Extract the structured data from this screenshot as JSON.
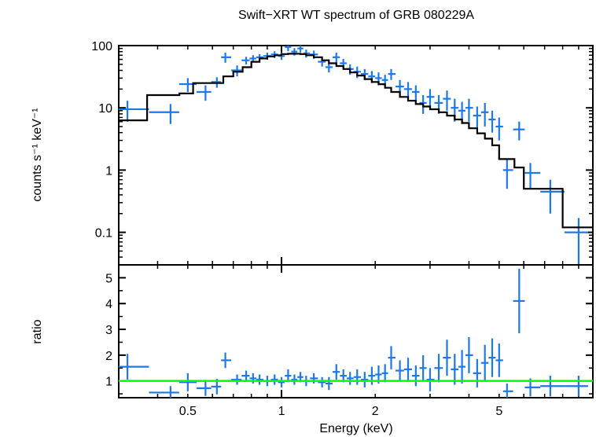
{
  "chart_data": {
    "type": "scatter",
    "title": "Swift−XRT WT spectrum of GRB 080229A",
    "xlabel": "Energy (keV)",
    "x_scale": "log",
    "xlim": [
      0.3,
      10
    ],
    "x_ticks": [
      0.5,
      1,
      2,
      5
    ],
    "x_tick_labels": [
      "0.5",
      "1",
      "2",
      "5"
    ],
    "colors": {
      "data": "#1e78e6",
      "model": "#000000",
      "unity": "#00ff00"
    },
    "panels": [
      {
        "name": "spectrum",
        "ylabel": "counts s⁻¹ keV⁻¹",
        "y_scale": "log",
        "ylim": [
          0.03,
          100
        ],
        "y_ticks": [
          0.1,
          1,
          10,
          100
        ],
        "y_tick_labels": [
          "0.1",
          "1",
          "10",
          "100"
        ],
        "series": [
          {
            "type": "errorbar",
            "x": [
              0.32,
              0.44,
              0.5,
              0.57,
              0.62,
              0.66,
              0.72,
              0.77,
              0.81,
              0.85,
              0.9,
              0.95,
              1.0,
              1.05,
              1.1,
              1.15,
              1.2,
              1.27,
              1.35,
              1.42,
              1.5,
              1.58,
              1.66,
              1.75,
              1.85,
              1.95,
              2.05,
              2.15,
              2.25,
              2.4,
              2.55,
              2.7,
              2.85,
              3.0,
              3.2,
              3.4,
              3.6,
              3.8,
              4.0,
              4.25,
              4.5,
              4.75,
              5.0,
              5.3,
              5.8,
              6.3,
              7.3,
              9.0
            ],
            "y": [
              9.5,
              8.5,
              24,
              18,
              26,
              65,
              40,
              58,
              62,
              65,
              68,
              72,
              68,
              95,
              80,
              90,
              75,
              72,
              55,
              45,
              65,
              52,
              42,
              38,
              35,
              32,
              30,
              28,
              35,
              22,
              20,
              18,
              12,
              15,
              12,
              14,
              10,
              9,
              10,
              7.5,
              8.5,
              6.5,
              5,
              1.0,
              4.5,
              0.9,
              0.45,
              0.1
            ],
            "yerr": [
              3.5,
              3.0,
              6,
              5,
              5,
              12,
              8,
              8,
              8,
              8,
              9,
              9,
              9,
              14,
              11,
              12,
              11,
              11,
              9,
              8,
              12,
              9,
              8,
              8,
              7,
              7,
              7,
              6,
              7,
              6,
              6,
              5,
              4,
              5,
              4,
              5,
              4,
              3.5,
              4,
              3,
              3.5,
              2.5,
              2,
              0.5,
              1.5,
              0.4,
              0.25,
              0.07
            ]
          },
          {
            "type": "step",
            "name": "model",
            "x_edges": [
              0.3,
              0.37,
              0.47,
              0.52,
              0.6,
              0.65,
              0.7,
              0.75,
              0.8,
              0.85,
              0.9,
              0.95,
              1.0,
              1.05,
              1.1,
              1.15,
              1.2,
              1.27,
              1.35,
              1.42,
              1.5,
              1.58,
              1.66,
              1.75,
              1.85,
              1.95,
              2.05,
              2.15,
              2.25,
              2.4,
              2.55,
              2.7,
              2.85,
              3.0,
              3.2,
              3.4,
              3.6,
              3.8,
              4.0,
              4.25,
              4.5,
              4.75,
              5.0,
              5.6,
              6.0,
              6.7,
              8.0,
              10.0
            ],
            "y": [
              6.3,
              16,
              17,
              25,
              25,
              32,
              38,
              45,
              55,
              62,
              67,
              70,
              73,
              74,
              74,
              73,
              70,
              65,
              58,
              52,
              47,
              42,
              37,
              33,
              29,
              26,
              24,
              21,
              18,
              15,
              13,
              11.5,
              10.5,
              9.5,
              8.5,
              7.5,
              6.5,
              5.7,
              4.7,
              3.9,
              3.2,
              2.5,
              1.5,
              1.1,
              0.5,
              0.5,
              0.12
            ]
          }
        ]
      },
      {
        "name": "ratio",
        "ylabel": "ratio",
        "y_scale": "linear",
        "ylim": [
          0.35,
          5.5
        ],
        "y_ticks": [
          1,
          2,
          3,
          4,
          5
        ],
        "y_tick_labels": [
          "1",
          "2",
          "3",
          "4",
          "5"
        ],
        "series": [
          {
            "type": "errorbar",
            "x": [
              0.32,
              0.44,
              0.5,
              0.57,
              0.62,
              0.66,
              0.72,
              0.77,
              0.81,
              0.85,
              0.9,
              0.95,
              1.0,
              1.05,
              1.1,
              1.15,
              1.2,
              1.27,
              1.35,
              1.42,
              1.5,
              1.58,
              1.66,
              1.75,
              1.85,
              1.95,
              2.05,
              2.15,
              2.25,
              2.4,
              2.55,
              2.7,
              2.85,
              3.0,
              3.2,
              3.4,
              3.6,
              3.8,
              4.0,
              4.25,
              4.5,
              4.75,
              5.0,
              5.3,
              5.8,
              6.3,
              7.3,
              9.0
            ],
            "y": [
              1.55,
              0.55,
              0.95,
              0.72,
              0.78,
              1.8,
              1.05,
              1.2,
              1.1,
              1.05,
              1.0,
              1.05,
              0.95,
              1.2,
              1.05,
              1.15,
              1.0,
              1.1,
              0.95,
              0.9,
              1.35,
              1.2,
              1.1,
              1.15,
              1.05,
              1.2,
              1.25,
              1.3,
              1.9,
              1.4,
              1.45,
              1.2,
              1.5,
              1.05,
              1.5,
              1.9,
              1.45,
              1.55,
              2.0,
              1.3,
              1.7,
              1.9,
              1.8,
              0.6,
              4.1,
              0.75,
              0.8,
              0.8
            ],
            "yerr": [
              0.5,
              0.25,
              0.35,
              0.3,
              0.3,
              0.3,
              0.2,
              0.2,
              0.2,
              0.2,
              0.2,
              0.2,
              0.2,
              0.25,
              0.2,
              0.2,
              0.2,
              0.2,
              0.2,
              0.25,
              0.3,
              0.25,
              0.25,
              0.3,
              0.3,
              0.35,
              0.35,
              0.35,
              0.45,
              0.4,
              0.45,
              0.4,
              0.5,
              0.45,
              0.55,
              0.7,
              0.6,
              0.65,
              0.7,
              0.55,
              0.7,
              0.75,
              0.65,
              0.3,
              1.25,
              0.35,
              0.4,
              0.4
            ]
          },
          {
            "type": "hline",
            "name": "unity",
            "y": 1.0
          }
        ]
      }
    ]
  }
}
